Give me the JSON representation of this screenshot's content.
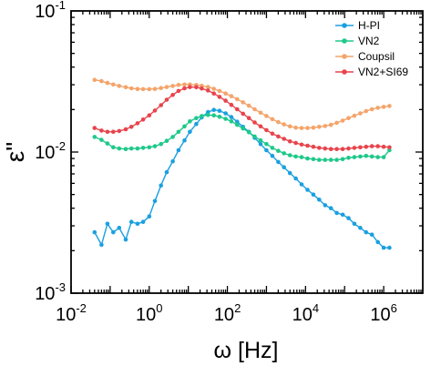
{
  "chart_data": {
    "type": "line",
    "xlabel": "ω [Hz]",
    "ylabel": "ε\"",
    "xscale": "log",
    "yscale": "log",
    "xlim": [
      0.01,
      10000000
    ],
    "ylim": [
      0.001,
      0.1
    ],
    "x_ticks": [
      {
        "base": "10",
        "exp": "-2",
        "value": 0.01
      },
      {
        "base": "10",
        "exp": "0",
        "value": 1
      },
      {
        "base": "10",
        "exp": "2",
        "value": 100
      },
      {
        "base": "10",
        "exp": "4",
        "value": 10000
      },
      {
        "base": "10",
        "exp": "6",
        "value": 1000000
      }
    ],
    "y_ticks": [
      {
        "base": "10",
        "exp": "-3",
        "value": 0.001
      },
      {
        "base": "10",
        "exp": "-2",
        "value": 0.01
      },
      {
        "base": "10",
        "exp": "-1",
        "value": 0.1
      }
    ],
    "legend_position": "top-right",
    "grid": false,
    "series": [
      {
        "name": "H-PI",
        "color": "#1aa0e0",
        "x": [
          0.04,
          0.06,
          0.085,
          0.12,
          0.17,
          0.25,
          0.35,
          0.5,
          0.7,
          1.0,
          1.4,
          2.0,
          2.8,
          4.0,
          5.6,
          8,
          11,
          16,
          22,
          32,
          45,
          63,
          90,
          126,
          178,
          251,
          355,
          500,
          708,
          1000,
          1413,
          2000,
          2818,
          3981,
          5623,
          7943,
          11220,
          15850,
          22390,
          31620,
          44670,
          63100,
          89130,
          125900,
          177800,
          251200,
          354800,
          501200,
          707900,
          1000000,
          1400000
        ],
        "y": [
          0.0027,
          0.0022,
          0.0031,
          0.0027,
          0.0029,
          0.0024,
          0.0032,
          0.0031,
          0.0032,
          0.0035,
          0.0045,
          0.0058,
          0.0072,
          0.0086,
          0.0103,
          0.0121,
          0.0139,
          0.0158,
          0.0176,
          0.0192,
          0.0199,
          0.0196,
          0.0188,
          0.0177,
          0.0164,
          0.0151,
          0.0139,
          0.0126,
          0.0114,
          0.0103,
          0.0094,
          0.0085,
          0.0078,
          0.0071,
          0.0065,
          0.0059,
          0.0054,
          0.005,
          0.0046,
          0.0042,
          0.004,
          0.0037,
          0.0036,
          0.0034,
          0.0031,
          0.0029,
          0.0027,
          0.0026,
          0.0023,
          0.0021,
          0.0021
        ]
      },
      {
        "name": "VN2",
        "color": "#1ec98a",
        "x": [
          0.04,
          0.06,
          0.085,
          0.12,
          0.17,
          0.25,
          0.35,
          0.5,
          0.7,
          1.0,
          1.4,
          2.0,
          2.8,
          4.0,
          5.6,
          8,
          11,
          16,
          22,
          32,
          45,
          63,
          90,
          126,
          178,
          251,
          355,
          500,
          708,
          1000,
          1413,
          2000,
          2818,
          3981,
          5623,
          7943,
          11220,
          15850,
          22390,
          31620,
          44670,
          63100,
          89130,
          125900,
          177800,
          251200,
          354800,
          501200,
          707900,
          1000000,
          1400000
        ],
        "y": [
          0.0128,
          0.0122,
          0.0115,
          0.0108,
          0.0106,
          0.0105,
          0.0106,
          0.0106,
          0.0107,
          0.0108,
          0.011,
          0.0114,
          0.012,
          0.0128,
          0.0139,
          0.0152,
          0.0165,
          0.0174,
          0.018,
          0.0183,
          0.0182,
          0.0178,
          0.0172,
          0.0165,
          0.0156,
          0.0147,
          0.0138,
          0.0129,
          0.0121,
          0.0114,
          0.0107,
          0.0102,
          0.0098,
          0.0095,
          0.0093,
          0.0092,
          0.009,
          0.0089,
          0.0088,
          0.0088,
          0.0088,
          0.0088,
          0.0089,
          0.0091,
          0.0092,
          0.0093,
          0.0094,
          0.0093,
          0.0092,
          0.0092,
          0.0103
        ]
      },
      {
        "name": "Coupsil",
        "color": "#f4a46a",
        "x": [
          0.04,
          0.06,
          0.085,
          0.12,
          0.17,
          0.25,
          0.35,
          0.5,
          0.7,
          1.0,
          1.4,
          2.0,
          2.8,
          4.0,
          5.6,
          8,
          11,
          16,
          22,
          32,
          45,
          63,
          90,
          126,
          178,
          251,
          355,
          500,
          708,
          1000,
          1413,
          2000,
          2818,
          3981,
          5623,
          7943,
          11220,
          15850,
          22390,
          31620,
          44670,
          63100,
          89130,
          125900,
          177800,
          251200,
          354800,
          501200,
          707900,
          1000000,
          1400000
        ],
        "y": [
          0.0325,
          0.0318,
          0.0309,
          0.0301,
          0.0294,
          0.0288,
          0.0283,
          0.028,
          0.0279,
          0.0279,
          0.028,
          0.0284,
          0.0289,
          0.0294,
          0.0299,
          0.0301,
          0.0301,
          0.0299,
          0.0295,
          0.0289,
          0.0281,
          0.0271,
          0.026,
          0.0249,
          0.0237,
          0.0225,
          0.0213,
          0.0201,
          0.019,
          0.018,
          0.0171,
          0.0163,
          0.0157,
          0.0152,
          0.0149,
          0.0148,
          0.0148,
          0.0149,
          0.0151,
          0.0153,
          0.0156,
          0.0161,
          0.0167,
          0.0174,
          0.0181,
          0.0188,
          0.0195,
          0.0201,
          0.0206,
          0.0209,
          0.0212
        ]
      },
      {
        "name": "VN2+SI69",
        "color": "#e8444c",
        "x": [
          0.04,
          0.06,
          0.085,
          0.12,
          0.17,
          0.25,
          0.35,
          0.5,
          0.7,
          1.0,
          1.4,
          2.0,
          2.8,
          4.0,
          5.6,
          8,
          11,
          16,
          22,
          32,
          45,
          63,
          90,
          126,
          178,
          251,
          355,
          500,
          708,
          1000,
          1413,
          2000,
          2818,
          3981,
          5623,
          7943,
          11220,
          15850,
          22390,
          31620,
          44670,
          63100,
          89130,
          125900,
          177800,
          251200,
          354800,
          501200,
          707900,
          1000000,
          1400000
        ],
        "y": [
          0.0148,
          0.0142,
          0.0139,
          0.0139,
          0.0141,
          0.0145,
          0.0151,
          0.016,
          0.017,
          0.0182,
          0.0197,
          0.0215,
          0.0235,
          0.0254,
          0.0271,
          0.0283,
          0.0289,
          0.0288,
          0.0282,
          0.0273,
          0.026,
          0.0246,
          0.0231,
          0.0216,
          0.0201,
          0.0187,
          0.0174,
          0.0162,
          0.0152,
          0.0143,
          0.0135,
          0.0129,
          0.0124,
          0.0119,
          0.0116,
          0.0113,
          0.0111,
          0.0109,
          0.0107,
          0.0106,
          0.0105,
          0.0105,
          0.0105,
          0.0106,
          0.0107,
          0.0108,
          0.0109,
          0.011,
          0.011,
          0.0109,
          0.0108
        ]
      }
    ]
  }
}
